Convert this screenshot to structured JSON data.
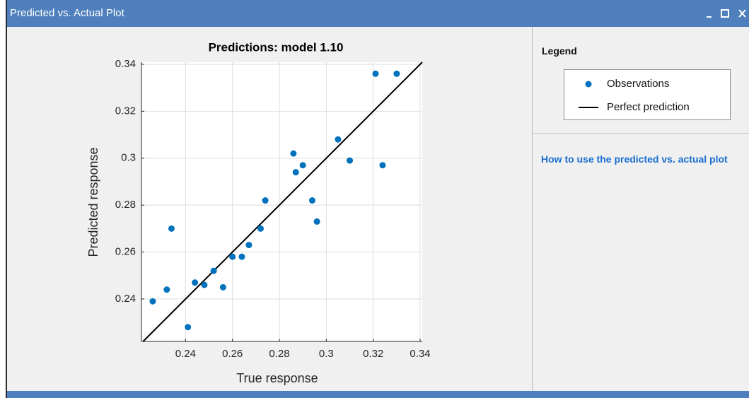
{
  "window": {
    "title": "Predicted vs. Actual Plot"
  },
  "chart_data": {
    "type": "scatter",
    "title": "Predictions: model 1.10",
    "xlabel": "True response",
    "ylabel": "Predicted response",
    "x": [
      0.226,
      0.232,
      0.234,
      0.241,
      0.244,
      0.248,
      0.252,
      0.256,
      0.26,
      0.264,
      0.267,
      0.272,
      0.274,
      0.286,
      0.287,
      0.29,
      0.294,
      0.296,
      0.305,
      0.31,
      0.321,
      0.324,
      0.33
    ],
    "series": [
      {
        "name": "Observations",
        "color": "#0072bd",
        "values": [
          0.239,
          0.244,
          0.27,
          0.228,
          0.247,
          0.246,
          0.252,
          0.245,
          0.258,
          0.258,
          0.263,
          0.27,
          0.282,
          0.302,
          0.294,
          0.297,
          0.282,
          0.273,
          0.308,
          0.299,
          0.336,
          0.297,
          0.336
        ]
      }
    ],
    "reference_line": {
      "name": "Perfect prediction",
      "color": "#000000"
    },
    "xlim": [
      0.2212,
      0.3409
    ],
    "ylim": [
      0.2219,
      0.3409
    ],
    "xticks": [
      0.24,
      0.26,
      0.28,
      0.3,
      0.32,
      0.34
    ],
    "yticks": [
      0.24,
      0.26,
      0.28,
      0.3,
      0.32,
      0.34
    ],
    "grid": true
  },
  "side_panel": {
    "legend_heading": "Legend",
    "help_link": "How to use the predicted vs. actual plot"
  }
}
